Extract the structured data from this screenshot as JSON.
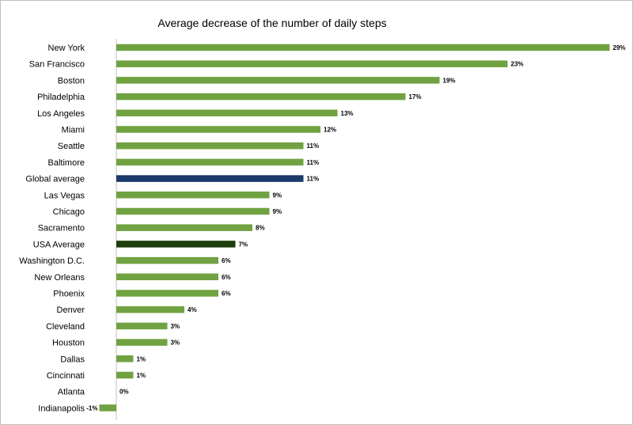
{
  "chart_data": {
    "type": "bar",
    "orientation": "horizontal",
    "title": "Average decrease of the number of daily steps",
    "xlabel": "",
    "ylabel": "",
    "xlim": [
      -1,
      29
    ],
    "grid": false,
    "legend": "none",
    "categories": [
      "New York",
      "San Francisco",
      "Boston",
      "Philadelphia",
      "Los Angeles",
      "Miami",
      "Seattle",
      "Baltimore",
      "Global average",
      "Las Vegas",
      "Chicago",
      "Sacramento",
      "USA Average",
      "Washington D.C.",
      "New Orleans",
      "Phoenix",
      "Denver",
      "Cleveland",
      "Houston",
      "Dallas",
      "Cincinnati",
      "Atlanta",
      "Indianapolis"
    ],
    "values": [
      29,
      23,
      19,
      17,
      13,
      12,
      11,
      11,
      11,
      9,
      9,
      8,
      7,
      6,
      6,
      6,
      4,
      3,
      3,
      1,
      1,
      0,
      -1
    ],
    "labels": [
      "29%",
      "23%",
      "19%",
      "17%",
      "13%",
      "12%",
      "11%",
      "11%",
      "11%",
      "9%",
      "9%",
      "8%",
      "7%",
      "6%",
      "6%",
      "6%",
      "4%",
      "3%",
      "3%",
      "1%",
      "1%",
      "0%",
      "-1%"
    ],
    "colors": {
      "default": "#70a241",
      "highlight": {
        "Global average": "#1b3a6b",
        "USA Average": "#1e3d0c"
      }
    }
  }
}
